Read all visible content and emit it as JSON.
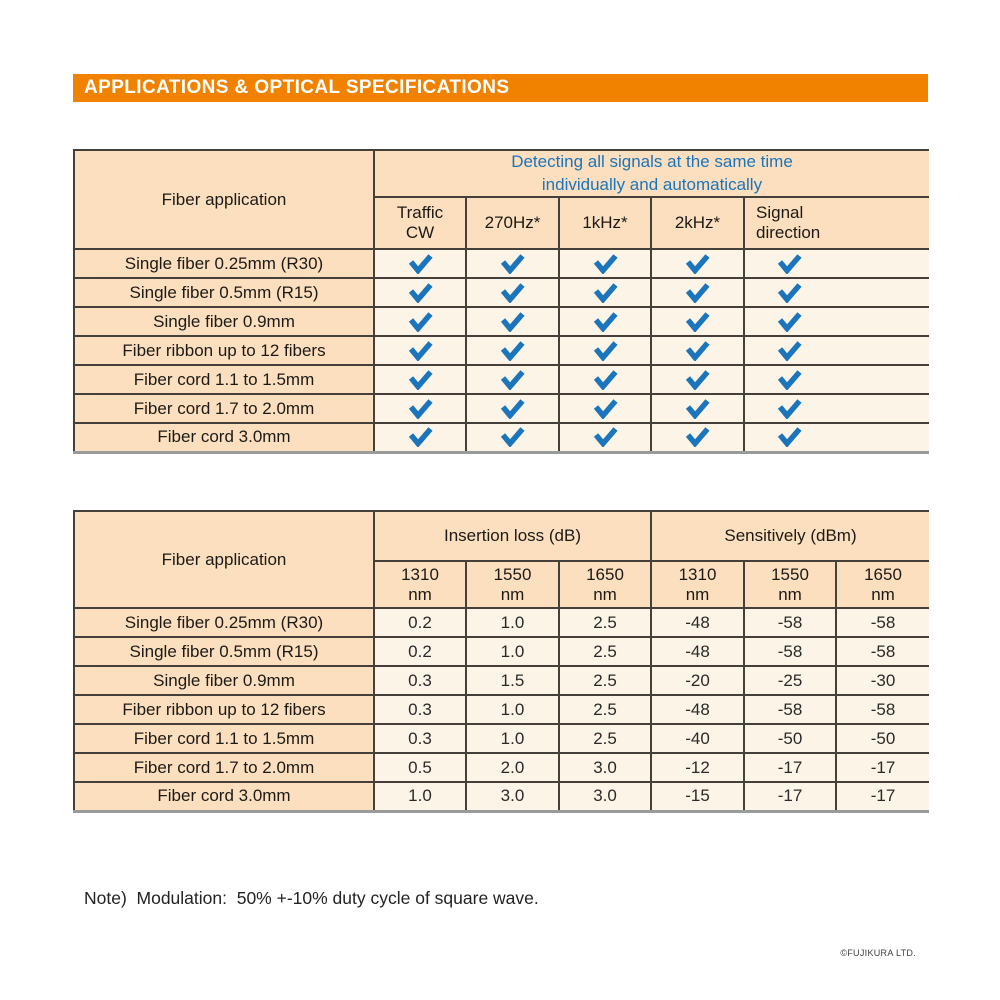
{
  "page": {
    "title": "APPLICATIONS & OPTICAL SPECIFICATIONS",
    "note": "Note)  Modulation:  50% +-10% duty cycle of square wave.",
    "copyright": "©FUJIKURA LTD."
  },
  "colors": {
    "accent_orange": "#F08200",
    "header_peach": "#FBDFBE",
    "cell_cream": "#FCF4E6",
    "blue_text": "#1B75BC",
    "check_blue": "#1B75BC",
    "border_dark": "#46403a"
  },
  "icons": {
    "check": "check-icon"
  },
  "table1": {
    "fiber_application_header": "Fiber application",
    "group_header": "Detecting all signals at the same time\nindividually and automatically",
    "columns": [
      "Traffic\nCW",
      "270Hz*",
      "1kHz*",
      "2kHz*",
      "Signal\ndirection"
    ],
    "rows": [
      {
        "label": "Single fiber 0.25mm (R30)",
        "checks": [
          true,
          true,
          true,
          true,
          true
        ]
      },
      {
        "label": "Single fiber 0.5mm (R15)",
        "checks": [
          true,
          true,
          true,
          true,
          true
        ]
      },
      {
        "label": "Single fiber 0.9mm",
        "checks": [
          true,
          true,
          true,
          true,
          true
        ]
      },
      {
        "label": "Fiber ribbon up to 12 fibers",
        "checks": [
          true,
          true,
          true,
          true,
          true
        ]
      },
      {
        "label": "Fiber cord 1.1 to 1.5mm",
        "checks": [
          true,
          true,
          true,
          true,
          true
        ]
      },
      {
        "label": "Fiber cord 1.7 to 2.0mm",
        "checks": [
          true,
          true,
          true,
          true,
          true
        ]
      },
      {
        "label": "Fiber cord 3.0mm",
        "checks": [
          true,
          true,
          true,
          true,
          true
        ]
      }
    ]
  },
  "table2": {
    "fiber_application_header": "Fiber application",
    "groups": [
      {
        "label": "Insertion loss (dB)"
      },
      {
        "label": "Sensitively (dBm)"
      }
    ],
    "wavelength_columns": [
      "1310\nnm",
      "1550\nnm",
      "1650\nnm",
      "1310\nnm",
      "1550\nnm",
      "1650\nnm"
    ],
    "rows": [
      {
        "label": "Single fiber 0.25mm (R30)",
        "values": [
          "0.2",
          "1.0",
          "2.5",
          "-48",
          "-58",
          "-58"
        ]
      },
      {
        "label": "Single fiber 0.5mm (R15)",
        "values": [
          "0.2",
          "1.0",
          "2.5",
          "-48",
          "-58",
          "-58"
        ]
      },
      {
        "label": "Single fiber 0.9mm",
        "values": [
          "0.3",
          "1.5",
          "2.5",
          "-20",
          "-25",
          "-30"
        ]
      },
      {
        "label": "Fiber ribbon up to 12 fibers",
        "values": [
          "0.3",
          "1.0",
          "2.5",
          "-48",
          "-58",
          "-58"
        ]
      },
      {
        "label": "Fiber cord 1.1 to 1.5mm",
        "values": [
          "0.3",
          "1.0",
          "2.5",
          "-40",
          "-50",
          "-50"
        ]
      },
      {
        "label": "Fiber cord 1.7 to 2.0mm",
        "values": [
          "0.5",
          "2.0",
          "3.0",
          "-12",
          "-17",
          "-17"
        ]
      },
      {
        "label": "Fiber cord 3.0mm",
        "values": [
          "1.0",
          "3.0",
          "3.0",
          "-15",
          "-17",
          "-17"
        ]
      }
    ]
  }
}
